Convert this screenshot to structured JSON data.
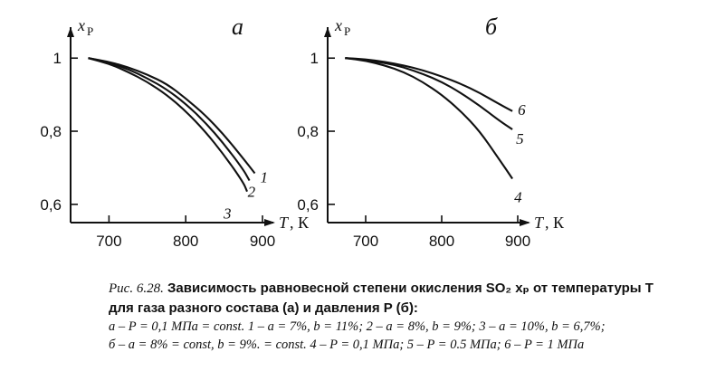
{
  "chart_data": [
    {
      "type": "line",
      "panel_label": "а",
      "y_symbol": "x",
      "y_subscript": "Р",
      "x_symbol": "T",
      "x_unit": ", К",
      "xlim": [
        650,
        900
      ],
      "ylim": [
        0.55,
        1.06
      ],
      "x_ticks": [
        700,
        800,
        900
      ],
      "x_tick_labels": [
        "700",
        "800",
        "900"
      ],
      "y_ticks": [
        1.0,
        0.8,
        0.6
      ],
      "y_tick_labels": [
        "1",
        "0,8",
        "0,6"
      ],
      "series": [
        {
          "name": "1",
          "x": [
            673,
            700,
            725,
            750,
            775,
            800,
            825,
            850,
            875,
            890
          ],
          "y": [
            1.0,
            0.99,
            0.975,
            0.955,
            0.93,
            0.89,
            0.845,
            0.79,
            0.725,
            0.685
          ]
        },
        {
          "name": "2",
          "x": [
            673,
            700,
            725,
            750,
            775,
            800,
            825,
            850,
            875,
            883
          ],
          "y": [
            1.0,
            0.988,
            0.97,
            0.945,
            0.915,
            0.875,
            0.825,
            0.765,
            0.695,
            0.665
          ]
        },
        {
          "name": "3",
          "x": [
            673,
            700,
            725,
            750,
            775,
            800,
            825,
            850,
            875,
            880
          ],
          "y": [
            1.0,
            0.985,
            0.962,
            0.935,
            0.9,
            0.855,
            0.8,
            0.735,
            0.66,
            0.635
          ]
        }
      ]
    },
    {
      "type": "line",
      "panel_label": "б",
      "y_symbol": "x",
      "y_subscript": "Р",
      "x_symbol": "T",
      "x_unit": ", К",
      "xlim": [
        650,
        900
      ],
      "ylim": [
        0.55,
        1.06
      ],
      "x_ticks": [
        700,
        800,
        900
      ],
      "x_tick_labels": [
        "700",
        "800",
        "900"
      ],
      "y_ticks": [
        1.0,
        0.8,
        0.6
      ],
      "y_tick_labels": [
        "1",
        "0,8",
        "0,6"
      ],
      "series": [
        {
          "name": "6",
          "x": [
            673,
            700,
            725,
            750,
            775,
            800,
            825,
            850,
            875,
            893
          ],
          "y": [
            1.0,
            0.997,
            0.99,
            0.98,
            0.967,
            0.95,
            0.93,
            0.905,
            0.875,
            0.855
          ]
        },
        {
          "name": "5",
          "x": [
            673,
            700,
            725,
            750,
            775,
            800,
            825,
            850,
            875,
            893
          ],
          "y": [
            1.0,
            0.995,
            0.987,
            0.975,
            0.957,
            0.935,
            0.905,
            0.87,
            0.83,
            0.805
          ]
        },
        {
          "name": "4",
          "x": [
            673,
            700,
            725,
            750,
            775,
            800,
            825,
            850,
            875,
            893
          ],
          "y": [
            1.0,
            0.993,
            0.98,
            0.962,
            0.935,
            0.9,
            0.855,
            0.8,
            0.725,
            0.67
          ]
        }
      ]
    }
  ],
  "caption": {
    "prefix": "Рис. 6.28.",
    "line1": "Зависимость равновесной степени окисления SO₂ xₚ от температуры T",
    "line2": "для газа разного состава (а) и давления P (б):",
    "note_a": "а – P = 0,1 МПа = const. 1 – a = 7%, b = 11%; 2 – a = 8%, b = 9%; 3 – a = 10%, b = 6,7%;",
    "note_b": "б – a = 8% = const, b = 9%. = const. 4 – P = 0,1 МПа; 5 – P = 0.5 МПа; 6 – P = 1 МПа"
  }
}
